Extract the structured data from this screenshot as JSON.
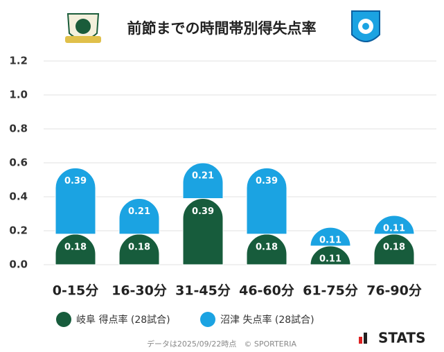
{
  "chart_data": {
    "type": "bar",
    "stacked": true,
    "title": "前節までの時間帯別得失点率",
    "categories": [
      "0-15分",
      "16-30分",
      "31-45分",
      "46-60分",
      "61-75分",
      "76-90分"
    ],
    "series": [
      {
        "name": "岐阜 得点率 (28試合)",
        "color": "#175c3c",
        "values": [
          0.18,
          0.18,
          0.39,
          0.18,
          0.11,
          0.18
        ]
      },
      {
        "name": "沼津 失点率 (28試合)",
        "color": "#1ba3e2",
        "values": [
          0.39,
          0.21,
          0.21,
          0.39,
          0.11,
          0.11
        ]
      }
    ],
    "ylim": [
      0,
      1.2
    ],
    "yticks": [
      {
        "value": 0,
        "label": "0.0"
      },
      0.2,
      0.4,
      0.6,
      0.8,
      {
        "value": 1,
        "label": "1.0"
      },
      1.2
    ],
    "grid": true,
    "footnote": "データは2025/09/22時点　© SPORTERIA",
    "brand": "STATS"
  }
}
